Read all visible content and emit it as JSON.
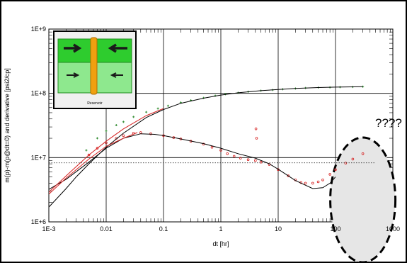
{
  "chart_data": {
    "type": "scatter",
    "title": "",
    "xlabel": "dt [hr]",
    "ylabel": "m(p)-m(p@dt=0) and derivative [psi2/cp]",
    "x_scale": "log",
    "y_scale": "log",
    "xlim": [
      0.001,
      1000
    ],
    "ylim": [
      1000000,
      1000000000
    ],
    "x_tick_labels": [
      "1E-3",
      "0.01",
      "0.1",
      "1",
      "10",
      "100",
      "1000"
    ],
    "y_tick_labels": [
      "1E+6",
      "1E+7",
      "1E+8",
      "1E+9"
    ],
    "grid": true,
    "series": [
      {
        "kind": "pressure_change_measured",
        "color": "#2e8b2e",
        "marker": "plus",
        "points": [
          [
            0.0045,
            13000000.0
          ],
          [
            0.007,
            20000000.0
          ],
          [
            0.01,
            26000000.0
          ],
          [
            0.015,
            32000000.0
          ],
          [
            0.02,
            36000000.0
          ],
          [
            0.03,
            43000000.0
          ],
          [
            0.05,
            51000000.0
          ],
          [
            0.08,
            58000000.0
          ],
          [
            0.12,
            64000000.0
          ],
          [
            0.2,
            72000000.0
          ],
          [
            0.3,
            78000000.0
          ],
          [
            0.5,
            85000000.0
          ],
          [
            0.8,
            92000000.0
          ],
          [
            1.2,
            97000000.0
          ],
          [
            2,
            102000000.0
          ],
          [
            3,
            106000000.0
          ],
          [
            5,
            110000000.0
          ],
          [
            8,
            113000000.0
          ],
          [
            12,
            116000000.0
          ],
          [
            20,
            119000000.0
          ],
          [
            30,
            121000000.0
          ],
          [
            50,
            123000000.0
          ],
          [
            80,
            124000000.0
          ],
          [
            120,
            125000000.0
          ],
          [
            200,
            126000000.0
          ],
          [
            300,
            127000000.0
          ]
        ]
      },
      {
        "kind": "derivative_measured",
        "color": "#d62020",
        "marker": "circle",
        "points": [
          [
            0.005,
            11000000.0
          ],
          [
            0.007,
            14000000.0
          ],
          [
            0.01,
            17000000.0
          ],
          [
            0.015,
            20000000.0
          ],
          [
            0.02,
            22000000.0
          ],
          [
            0.03,
            24000000.0
          ],
          [
            0.04,
            24500000.0
          ],
          [
            0.06,
            23500000.0
          ],
          [
            0.1,
            22000000.0
          ],
          [
            0.15,
            20500000.0
          ],
          [
            0.2,
            19500000.0
          ],
          [
            0.3,
            18000000.0
          ],
          [
            0.5,
            16200000.0
          ],
          [
            0.7,
            14500000.0
          ],
          [
            1,
            13000000.0
          ],
          [
            1.3,
            11500000.0
          ],
          [
            1.7,
            10500000.0
          ],
          [
            2.2,
            9800000.0
          ],
          [
            3,
            9300000.0
          ],
          [
            4,
            9000000.0
          ],
          [
            4.1,
            28000000.0
          ],
          [
            4.2,
            20000000.0
          ],
          [
            5,
            8500000.0
          ],
          [
            7,
            7800000.0
          ],
          [
            10,
            6500000.0
          ],
          [
            15,
            5200000.0
          ],
          [
            20,
            4500000.0
          ],
          [
            25,
            4100000.0
          ],
          [
            30,
            4000000.0
          ],
          [
            40,
            4000000.0
          ],
          [
            50,
            4200000.0
          ],
          [
            60,
            4500000.0
          ],
          [
            80,
            5500000.0
          ],
          [
            100,
            6500000.0
          ],
          [
            150,
            8200000.0
          ],
          [
            200,
            9500000.0
          ],
          [
            300,
            11500000.0
          ]
        ]
      },
      {
        "kind": "pressure_change_model",
        "color": "#000000",
        "marker": "line",
        "points": [
          [
            0.001,
            1700000.0
          ],
          [
            0.002,
            3300000.0
          ],
          [
            0.003,
            5000000.0
          ],
          [
            0.005,
            8000000.0
          ],
          [
            0.01,
            14500000.0
          ],
          [
            0.02,
            24000000.0
          ],
          [
            0.05,
            42000000.0
          ],
          [
            0.1,
            56000000.0
          ],
          [
            0.2,
            70000000.0
          ],
          [
            0.5,
            84000000.0
          ],
          [
            1,
            94000000.0
          ],
          [
            2,
            102000000.0
          ],
          [
            5,
            110000000.0
          ],
          [
            10,
            115000000.0
          ],
          [
            20,
            119000000.0
          ],
          [
            50,
            123000000.0
          ],
          [
            100,
            125000000.0
          ],
          [
            300,
            127000000.0
          ]
        ]
      },
      {
        "kind": "derivative_model",
        "color": "#000000",
        "marker": "line",
        "points": [
          [
            0.001,
            3200000.0
          ],
          [
            0.002,
            4600000.0
          ],
          [
            0.005,
            8500000.0
          ],
          [
            0.01,
            14000000.0
          ],
          [
            0.02,
            20000000.0
          ],
          [
            0.04,
            23500000.0
          ],
          [
            0.07,
            23000000.0
          ],
          [
            0.1,
            22000000.0
          ],
          [
            0.2,
            19500000.0
          ],
          [
            0.5,
            16500000.0
          ],
          [
            1,
            14000000.0
          ],
          [
            2,
            11500000.0
          ],
          [
            4,
            9800000.0
          ],
          [
            7,
            8000000.0
          ],
          [
            10,
            6600000.0
          ],
          [
            20,
            4400000.0
          ],
          [
            40,
            3300000.0
          ],
          [
            60,
            3400000.0
          ],
          [
            80,
            4000000.0
          ],
          [
            100,
            5000000.0
          ]
        ]
      },
      {
        "kind": "derivative_early_fit",
        "color": "#d62020",
        "marker": "line",
        "points": [
          [
            0.001,
            2700000.0
          ],
          [
            0.002,
            4800000.0
          ],
          [
            0.005,
            9500000.0
          ],
          [
            0.01,
            15000000.0
          ],
          [
            0.02,
            20000000.0
          ],
          [
            0.035,
            24500000.0
          ]
        ]
      },
      {
        "kind": "pressure_change_early_fit",
        "color": "#d62020",
        "marker": "line",
        "points": [
          [
            0.001,
            2900000.0
          ],
          [
            0.002,
            5200000.0
          ],
          [
            0.005,
            11000000.0
          ],
          [
            0.01,
            18000000.0
          ],
          [
            0.02,
            28000000.0
          ],
          [
            0.05,
            45000000.0
          ],
          [
            0.1,
            58000000.0
          ]
        ]
      },
      {
        "kind": "dotted_reference",
        "color": "#333333",
        "marker": "dotted",
        "points": [
          [
            0.001,
            8300000.0
          ],
          [
            500,
            8300000.0
          ]
        ]
      }
    ],
    "annotations": [
      {
        "kind": "text",
        "text": "????",
        "x": 220,
        "y": 16000000.0
      },
      {
        "kind": "dashed_ellipse",
        "center": [
          300,
          2200000.0
        ],
        "color": "#000000",
        "fill": "#e6e6e6"
      }
    ],
    "inset": {
      "caption": "Reservoir",
      "colors": {
        "frame": "#000000",
        "fill_top": "#2ecc2e",
        "fill_bottom": "#8ee88e",
        "wellbore": "#f0a010",
        "arrow": "#1a1a1a"
      },
      "icons": [
        "fracture-icon",
        "arrow-icon"
      ]
    }
  }
}
